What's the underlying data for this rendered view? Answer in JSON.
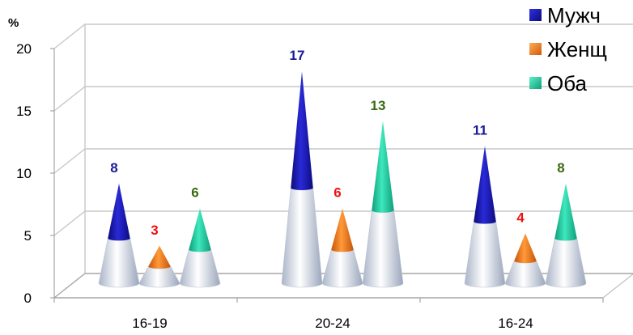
{
  "chart_data": {
    "type": "bar",
    "ylabel": "%",
    "ylim": [
      0,
      20
    ],
    "yticks": [
      "0",
      "5",
      "10",
      "15",
      "20"
    ],
    "grid": true,
    "legend_position": "top-right",
    "categories": [
      "16-19",
      "20-24",
      "16-24"
    ],
    "series": [
      {
        "name": "Мужч",
        "values": [
          8,
          17,
          11
        ],
        "color": "#1a1ab8",
        "label_color": "#1a1a99"
      },
      {
        "name": "Женщ",
        "values": [
          3,
          6,
          4
        ],
        "color": "#f07818",
        "label_color": "#ee1111"
      },
      {
        "name": "Оба",
        "values": [
          6,
          13,
          8
        ],
        "color": "#1fc9a0",
        "label_color": "#3a6a10"
      }
    ]
  }
}
